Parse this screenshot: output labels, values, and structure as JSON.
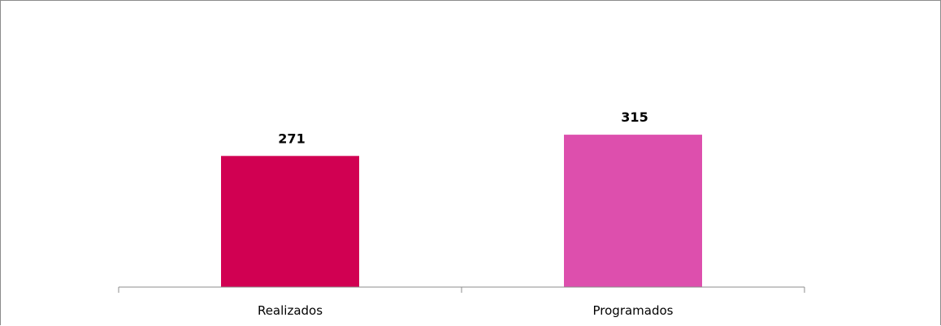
{
  "chart_data": {
    "type": "bar",
    "categories": [
      "Realizados",
      "Programados"
    ],
    "values": [
      271,
      315
    ],
    "data_labels": [
      "271",
      "315"
    ],
    "colors": [
      "#d10052",
      "#dd4fad"
    ],
    "title": "",
    "xlabel": "",
    "ylabel": "",
    "ylim": [
      0,
      400
    ],
    "grid": false,
    "legend": "none"
  }
}
